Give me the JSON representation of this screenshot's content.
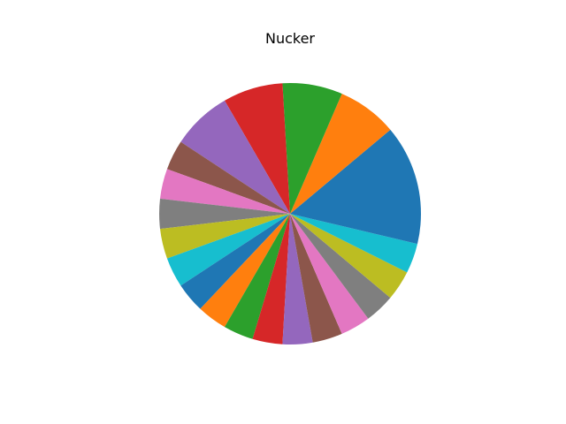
{
  "chart_data": {
    "type": "pie",
    "title": "Nucker",
    "start_angle_deg": 0,
    "direction": "counterclockwise",
    "slices": [
      {
        "value": 12,
        "color": "#1f77b4"
      },
      {
        "value": 8,
        "color": "#ff7f0e"
      },
      {
        "value": 8,
        "color": "#2ca02c"
      },
      {
        "value": 8,
        "color": "#d62728"
      },
      {
        "value": 8,
        "color": "#9467bd"
      },
      {
        "value": 4,
        "color": "#8c564b"
      },
      {
        "value": 4,
        "color": "#e377c2"
      },
      {
        "value": 4,
        "color": "#7f7f7f"
      },
      {
        "value": 4,
        "color": "#bcbd22"
      },
      {
        "value": 4,
        "color": "#17becf"
      },
      {
        "value": 4,
        "color": "#1f77b4"
      },
      {
        "value": 4,
        "color": "#ff7f0e"
      },
      {
        "value": 4,
        "color": "#2ca02c"
      },
      {
        "value": 4,
        "color": "#d62728"
      },
      {
        "value": 4,
        "color": "#9467bd"
      },
      {
        "value": 4,
        "color": "#8c564b"
      },
      {
        "value": 4,
        "color": "#e377c2"
      },
      {
        "value": 4,
        "color": "#7f7f7f"
      },
      {
        "value": 4,
        "color": "#bcbd22"
      },
      {
        "value": 4,
        "color": "#17becf"
      },
      {
        "value": 4,
        "color": "#1f77b4"
      }
    ]
  }
}
